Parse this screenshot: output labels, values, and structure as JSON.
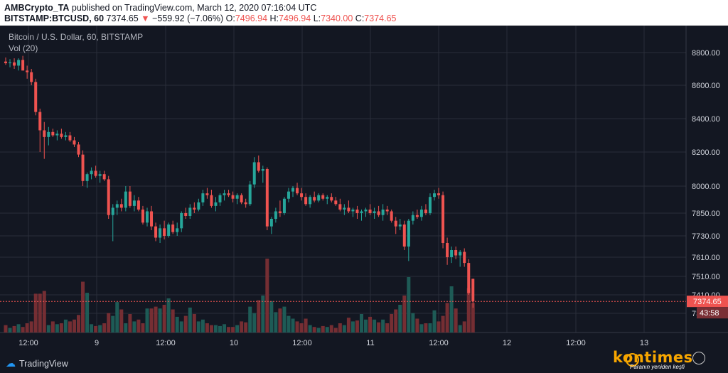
{
  "header": {
    "author": "AMBCrypto_TA",
    "published_text": "published on TradingView.com, March 12, 2020 07:16:04 UTC",
    "symbol": "BITSTAMP:BTCUSD, 60",
    "price": "7374.65",
    "arrow": "▼",
    "change": "−559.92 (−7.06%)",
    "o_label": "O:",
    "o_value": "7496.94",
    "h_label": "H:",
    "h_value": "7496.94",
    "l_label": "L:",
    "l_value": "7340.00",
    "c_label": "C:",
    "c_value": "7374.65"
  },
  "legend": {
    "title": "Bitcoin / U.S. Dollar, 60, BITSTAMP",
    "volume": "Vol (20)"
  },
  "price_label": "7374.65",
  "countdown": "43:58",
  "footer": {
    "logo_text": "TradingView",
    "watermark": "kontimes",
    "watermark_tagline": "Paranın yeniden keşfi"
  },
  "colors": {
    "up": "#26a69a",
    "down": "#ef5350",
    "background": "#131722",
    "grid": "#2a2e39",
    "axis_text": "#d1d4dc"
  },
  "chart_data": {
    "type": "candlestick",
    "y_ticks": [
      "8800.00",
      "8600.00",
      "8400.00",
      "8200.00",
      "8000.00",
      "7850.00",
      "7730.00",
      "7610.00",
      "7510.00",
      "7410.00",
      "73"
    ],
    "x_ticks": [
      "12:00",
      "9",
      "12:00",
      "10",
      "12:00",
      "11",
      "12:00",
      "12",
      "12:00",
      "13"
    ],
    "candles": [
      {
        "o": 8745,
        "h": 8770,
        "l": 8725,
        "c": 8735,
        "v": 8
      },
      {
        "o": 8735,
        "h": 8760,
        "l": 8710,
        "c": 8740,
        "v": 5
      },
      {
        "o": 8740,
        "h": 8765,
        "l": 8700,
        "c": 8720,
        "v": 7
      },
      {
        "o": 8720,
        "h": 8765,
        "l": 8690,
        "c": 8755,
        "v": 9
      },
      {
        "o": 8755,
        "h": 8780,
        "l": 8700,
        "c": 8690,
        "v": 6
      },
      {
        "o": 8690,
        "h": 8720,
        "l": 8640,
        "c": 8680,
        "v": 10
      },
      {
        "o": 8680,
        "h": 8700,
        "l": 8600,
        "c": 8620,
        "v": 12
      },
      {
        "o": 8620,
        "h": 8640,
        "l": 8420,
        "c": 8440,
        "v": 42
      },
      {
        "o": 8440,
        "h": 8460,
        "l": 8200,
        "c": 8330,
        "v": 42
      },
      {
        "o": 8330,
        "h": 8380,
        "l": 8160,
        "c": 8290,
        "v": 45
      },
      {
        "o": 8290,
        "h": 8350,
        "l": 8240,
        "c": 8320,
        "v": 8
      },
      {
        "o": 8320,
        "h": 8340,
        "l": 8290,
        "c": 8300,
        "v": 12
      },
      {
        "o": 8300,
        "h": 8330,
        "l": 8270,
        "c": 8310,
        "v": 9
      },
      {
        "o": 8310,
        "h": 8340,
        "l": 8280,
        "c": 8290,
        "v": 10
      },
      {
        "o": 8290,
        "h": 8320,
        "l": 8270,
        "c": 8300,
        "v": 14
      },
      {
        "o": 8300,
        "h": 8320,
        "l": 8260,
        "c": 8270,
        "v": 12
      },
      {
        "o": 8270,
        "h": 8290,
        "l": 8230,
        "c": 8245,
        "v": 14
      },
      {
        "o": 8245,
        "h": 8260,
        "l": 8170,
        "c": 8185,
        "v": 19
      },
      {
        "o": 8185,
        "h": 8210,
        "l": 8000,
        "c": 8030,
        "v": 55
      },
      {
        "o": 8030,
        "h": 8080,
        "l": 7990,
        "c": 8070,
        "v": 43
      },
      {
        "o": 8070,
        "h": 8110,
        "l": 8040,
        "c": 8090,
        "v": 9
      },
      {
        "o": 8090,
        "h": 8120,
        "l": 8050,
        "c": 8060,
        "v": 7
      },
      {
        "o": 8060,
        "h": 8090,
        "l": 8020,
        "c": 8070,
        "v": 8
      },
      {
        "o": 8070,
        "h": 8090,
        "l": 8030,
        "c": 8040,
        "v": 10
      },
      {
        "o": 8040,
        "h": 8060,
        "l": 7820,
        "c": 7840,
        "v": 21
      },
      {
        "o": 7840,
        "h": 7900,
        "l": 7700,
        "c": 7880,
        "v": 18
      },
      {
        "o": 7880,
        "h": 7920,
        "l": 7840,
        "c": 7900,
        "v": 33
      },
      {
        "o": 7900,
        "h": 7930,
        "l": 7860,
        "c": 7880,
        "v": 25
      },
      {
        "o": 7880,
        "h": 8000,
        "l": 7860,
        "c": 7970,
        "v": 10
      },
      {
        "o": 7970,
        "h": 8000,
        "l": 7880,
        "c": 7890,
        "v": 20
      },
      {
        "o": 7890,
        "h": 7950,
        "l": 7860,
        "c": 7920,
        "v": 12
      },
      {
        "o": 7920,
        "h": 7940,
        "l": 7860,
        "c": 7870,
        "v": 14
      },
      {
        "o": 7870,
        "h": 7890,
        "l": 7790,
        "c": 7800,
        "v": 10
      },
      {
        "o": 7800,
        "h": 7880,
        "l": 7780,
        "c": 7860,
        "v": 26
      },
      {
        "o": 7860,
        "h": 7890,
        "l": 7760,
        "c": 7780,
        "v": 26
      },
      {
        "o": 7780,
        "h": 7800,
        "l": 7700,
        "c": 7720,
        "v": 28
      },
      {
        "o": 7720,
        "h": 7790,
        "l": 7690,
        "c": 7770,
        "v": 26
      },
      {
        "o": 7770,
        "h": 7810,
        "l": 7710,
        "c": 7730,
        "v": 30
      },
      {
        "o": 7730,
        "h": 7800,
        "l": 7720,
        "c": 7790,
        "v": 37
      },
      {
        "o": 7790,
        "h": 7810,
        "l": 7740,
        "c": 7750,
        "v": 25
      },
      {
        "o": 7750,
        "h": 7800,
        "l": 7730,
        "c": 7770,
        "v": 17
      },
      {
        "o": 7770,
        "h": 7860,
        "l": 7750,
        "c": 7850,
        "v": 12
      },
      {
        "o": 7850,
        "h": 7880,
        "l": 7820,
        "c": 7835,
        "v": 18
      },
      {
        "o": 7835,
        "h": 7900,
        "l": 7820,
        "c": 7880,
        "v": 27
      },
      {
        "o": 7880,
        "h": 7910,
        "l": 7850,
        "c": 7870,
        "v": 20
      },
      {
        "o": 7870,
        "h": 7930,
        "l": 7860,
        "c": 7910,
        "v": 12
      },
      {
        "o": 7910,
        "h": 7980,
        "l": 7890,
        "c": 7960,
        "v": 14
      },
      {
        "o": 7960,
        "h": 7990,
        "l": 7930,
        "c": 7950,
        "v": 10
      },
      {
        "o": 7950,
        "h": 7980,
        "l": 7880,
        "c": 7890,
        "v": 8
      },
      {
        "o": 7890,
        "h": 7940,
        "l": 7860,
        "c": 7910,
        "v": 8
      },
      {
        "o": 7910,
        "h": 7960,
        "l": 7890,
        "c": 7950,
        "v": 7
      },
      {
        "o": 7950,
        "h": 7980,
        "l": 7920,
        "c": 7960,
        "v": 9
      },
      {
        "o": 7960,
        "h": 7980,
        "l": 7940,
        "c": 7950,
        "v": 6
      },
      {
        "o": 7950,
        "h": 7970,
        "l": 7910,
        "c": 7930,
        "v": 6
      },
      {
        "o": 7930,
        "h": 7960,
        "l": 7900,
        "c": 7950,
        "v": 8
      },
      {
        "o": 7950,
        "h": 7960,
        "l": 7900,
        "c": 7910,
        "v": 12
      },
      {
        "o": 7910,
        "h": 7930,
        "l": 7880,
        "c": 7900,
        "v": 11
      },
      {
        "o": 7900,
        "h": 8030,
        "l": 7890,
        "c": 8010,
        "v": 28
      },
      {
        "o": 8010,
        "h": 8170,
        "l": 7990,
        "c": 8140,
        "v": 21
      },
      {
        "o": 8140,
        "h": 8180,
        "l": 8080,
        "c": 8090,
        "v": 35
      },
      {
        "o": 8090,
        "h": 8120,
        "l": 8020,
        "c": 8100,
        "v": 40
      },
      {
        "o": 8100,
        "h": 8110,
        "l": 7760,
        "c": 7780,
        "v": 80
      },
      {
        "o": 7780,
        "h": 7830,
        "l": 7740,
        "c": 7820,
        "v": 34
      },
      {
        "o": 7820,
        "h": 7880,
        "l": 7800,
        "c": 7860,
        "v": 22
      },
      {
        "o": 7860,
        "h": 7920,
        "l": 7830,
        "c": 7850,
        "v": 26
      },
      {
        "o": 7850,
        "h": 7940,
        "l": 7840,
        "c": 7930,
        "v": 28
      },
      {
        "o": 7930,
        "h": 7990,
        "l": 7910,
        "c": 7970,
        "v": 18
      },
      {
        "o": 7970,
        "h": 8000,
        "l": 7940,
        "c": 7990,
        "v": 15
      },
      {
        "o": 7990,
        "h": 8020,
        "l": 7950,
        "c": 7960,
        "v": 12
      },
      {
        "o": 7960,
        "h": 7990,
        "l": 7920,
        "c": 7940,
        "v": 10
      },
      {
        "o": 7940,
        "h": 7960,
        "l": 7890,
        "c": 7900,
        "v": 15
      },
      {
        "o": 7900,
        "h": 7950,
        "l": 7880,
        "c": 7940,
        "v": 8
      },
      {
        "o": 7940,
        "h": 7970,
        "l": 7910,
        "c": 7920,
        "v": 6
      },
      {
        "o": 7920,
        "h": 7960,
        "l": 7910,
        "c": 7950,
        "v": 5
      },
      {
        "o": 7950,
        "h": 7960,
        "l": 7920,
        "c": 7930,
        "v": 7
      },
      {
        "o": 7930,
        "h": 7950,
        "l": 7900,
        "c": 7940,
        "v": 6
      },
      {
        "o": 7940,
        "h": 7960,
        "l": 7910,
        "c": 7920,
        "v": 8
      },
      {
        "o": 7920,
        "h": 7940,
        "l": 7890,
        "c": 7900,
        "v": 5
      },
      {
        "o": 7900,
        "h": 7930,
        "l": 7860,
        "c": 7870,
        "v": 10
      },
      {
        "o": 7870,
        "h": 7900,
        "l": 7840,
        "c": 7880,
        "v": 8
      },
      {
        "o": 7880,
        "h": 7920,
        "l": 7850,
        "c": 7860,
        "v": 16
      },
      {
        "o": 7860,
        "h": 7880,
        "l": 7830,
        "c": 7870,
        "v": 12
      },
      {
        "o": 7870,
        "h": 7890,
        "l": 7820,
        "c": 7850,
        "v": 13
      },
      {
        "o": 7850,
        "h": 7870,
        "l": 7810,
        "c": 7860,
        "v": 20
      },
      {
        "o": 7860,
        "h": 7880,
        "l": 7830,
        "c": 7870,
        "v": 14
      },
      {
        "o": 7870,
        "h": 7900,
        "l": 7840,
        "c": 7850,
        "v": 17
      },
      {
        "o": 7850,
        "h": 7880,
        "l": 7820,
        "c": 7860,
        "v": 14
      },
      {
        "o": 7860,
        "h": 7890,
        "l": 7830,
        "c": 7840,
        "v": 11
      },
      {
        "o": 7840,
        "h": 7900,
        "l": 7810,
        "c": 7870,
        "v": 14
      },
      {
        "o": 7870,
        "h": 7890,
        "l": 7840,
        "c": 7860,
        "v": 10
      },
      {
        "o": 7860,
        "h": 7870,
        "l": 7800,
        "c": 7810,
        "v": 20
      },
      {
        "o": 7810,
        "h": 7830,
        "l": 7740,
        "c": 7780,
        "v": 25
      },
      {
        "o": 7780,
        "h": 7820,
        "l": 7760,
        "c": 7790,
        "v": 30
      },
      {
        "o": 7790,
        "h": 7810,
        "l": 7650,
        "c": 7670,
        "v": 40
      },
      {
        "o": 7670,
        "h": 7820,
        "l": 7590,
        "c": 7810,
        "v": 60
      },
      {
        "o": 7810,
        "h": 7860,
        "l": 7790,
        "c": 7840,
        "v": 21
      },
      {
        "o": 7840,
        "h": 7870,
        "l": 7820,
        "c": 7830,
        "v": 15
      },
      {
        "o": 7830,
        "h": 7890,
        "l": 7810,
        "c": 7870,
        "v": 9
      },
      {
        "o": 7870,
        "h": 7900,
        "l": 7840,
        "c": 7850,
        "v": 10
      },
      {
        "o": 7850,
        "h": 7960,
        "l": 7840,
        "c": 7940,
        "v": 10
      },
      {
        "o": 7940,
        "h": 7980,
        "l": 7920,
        "c": 7960,
        "v": 24
      },
      {
        "o": 7960,
        "h": 7990,
        "l": 7930,
        "c": 7950,
        "v": 12
      },
      {
        "o": 7950,
        "h": 7970,
        "l": 7660,
        "c": 7690,
        "v": 18
      },
      {
        "o": 7690,
        "h": 7720,
        "l": 7570,
        "c": 7610,
        "v": 32
      },
      {
        "o": 7610,
        "h": 7670,
        "l": 7580,
        "c": 7650,
        "v": 50
      },
      {
        "o": 7650,
        "h": 7670,
        "l": 7600,
        "c": 7620,
        "v": 26
      },
      {
        "o": 7620,
        "h": 7650,
        "l": 7560,
        "c": 7640,
        "v": 8
      },
      {
        "o": 7640,
        "h": 7660,
        "l": 7560,
        "c": 7580,
        "v": 12
      },
      {
        "o": 7580,
        "h": 7600,
        "l": 7410,
        "c": 7420,
        "v": 48
      },
      {
        "o": 7496.94,
        "h": 7496.94,
        "l": 7340.0,
        "c": 7374.65,
        "v": 32
      }
    ]
  }
}
